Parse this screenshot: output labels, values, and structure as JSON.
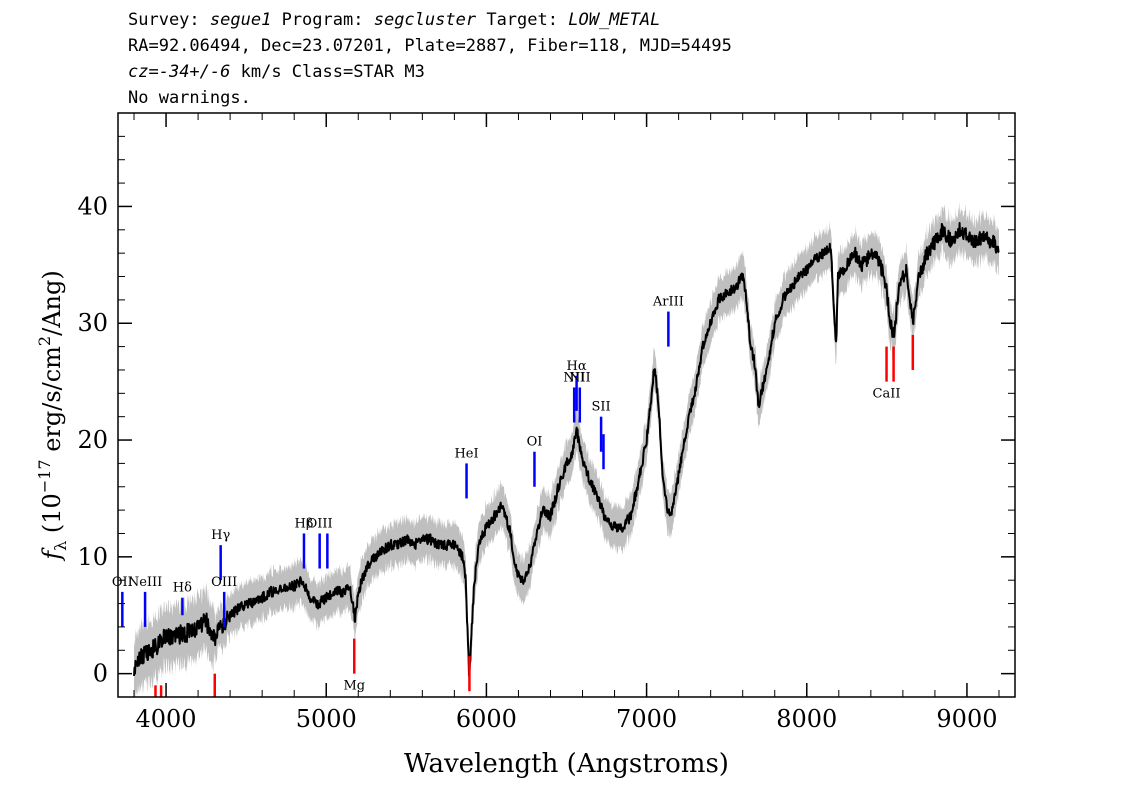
{
  "header": {
    "survey_label": "Survey:",
    "survey": "segue1",
    "program_label": "Program:",
    "program": "segcluster",
    "target_label": "Target:",
    "target": "LOW_METAL",
    "line2": "RA=92.06494, Dec=23.07201, Plate=2887, Fiber=118, MJD=54495",
    "cz_label": "cz=",
    "cz_value": "-34+/-6",
    "cz_rest": " km/s Class=STAR M3",
    "warnings": "No warnings."
  },
  "chart_data": {
    "type": "line",
    "title": "",
    "xlabel": "Wavelength (Angstroms)",
    "ylabel": "f_λ (10^-17 erg/s/cm^2/Ang)",
    "xlim": [
      3700,
      9300
    ],
    "ylim": [
      -2,
      48
    ],
    "xticks": [
      "4000",
      "5000",
      "6000",
      "7000",
      "8000",
      "9000"
    ],
    "yticks": [
      "0",
      "10",
      "20",
      "30",
      "40"
    ],
    "xtick_values": [
      4000,
      5000,
      6000,
      7000,
      8000,
      9000
    ],
    "ytick_values": [
      0,
      10,
      20,
      30,
      40
    ],
    "colors": {
      "spectrum": "#000000",
      "error_band": "#bfbfbf",
      "emission": "#0000ff",
      "absorption": "#ff0000"
    },
    "series": [
      {
        "x": [
          3800,
          3850,
          3900,
          3950,
          4000,
          4050,
          4100,
          4150,
          4200,
          4250,
          4300,
          4350,
          4400,
          4450,
          4500,
          4550,
          4600,
          4650,
          4700,
          4750,
          4800,
          4850,
          4900,
          4950,
          5000,
          5050,
          5100,
          5150,
          5180,
          5200,
          5250,
          5300,
          5350,
          5400,
          5450,
          5500,
          5550,
          5600,
          5650,
          5700,
          5750,
          5800,
          5850,
          5870,
          5893,
          5920,
          5950,
          6000,
          6050,
          6100,
          6150,
          6180,
          6200,
          6230,
          6270,
          6300,
          6350,
          6400,
          6450,
          6500,
          6540,
          6563,
          6600,
          6650,
          6700,
          6750,
          6800,
          6850,
          6900,
          6950,
          7000,
          7050,
          7080,
          7100,
          7130,
          7150,
          7200,
          7250,
          7300,
          7350,
          7400,
          7450,
          7500,
          7550,
          7600,
          7620,
          7650,
          7670,
          7700,
          7750,
          7800,
          7850,
          7900,
          7950,
          8000,
          8050,
          8100,
          8150,
          8183,
          8195,
          8250,
          8300,
          8350,
          8400,
          8450,
          8498,
          8520,
          8542,
          8580,
          8620,
          8662,
          8700,
          8750,
          8800,
          8850,
          8900,
          8950,
          9000,
          9050,
          9100,
          9150,
          9200
        ],
        "y": [
          0.5,
          1.5,
          2,
          2.5,
          3.5,
          3,
          3.5,
          3.5,
          4,
          4.5,
          3,
          4,
          5,
          5.5,
          6,
          6,
          6.5,
          7,
          7,
          7.5,
          7.5,
          8,
          6.5,
          6,
          6.5,
          7,
          7,
          7.5,
          4.5,
          7,
          9,
          10,
          10.5,
          11,
          11,
          11.5,
          11,
          11.5,
          11.5,
          11,
          11,
          11,
          10,
          8,
          -0.5,
          7,
          11,
          12.5,
          13.5,
          14.5,
          12,
          9,
          8.5,
          8,
          9,
          11,
          14,
          13.5,
          16,
          18,
          19,
          21,
          18,
          16.5,
          15,
          13,
          12.5,
          12.5,
          13.5,
          16.5,
          20,
          26.5,
          22,
          17,
          14,
          13.5,
          17,
          21,
          24,
          28,
          30,
          32,
          32.5,
          33,
          34,
          32.5,
          28,
          27,
          23,
          26,
          30,
          32,
          33,
          34,
          34.5,
          35.5,
          36,
          36.5,
          28,
          34,
          35,
          36,
          35,
          36,
          35.5,
          33,
          30,
          29,
          33.5,
          34.5,
          30,
          34,
          36,
          37,
          38,
          37,
          38,
          37.5,
          37,
          37.5,
          37,
          36.5
        ]
      }
    ],
    "error_band": [
      1.5
    ],
    "emission_lines": [
      {
        "label": "OII",
        "x": 3727,
        "y1": 4,
        "y2": 7
      },
      {
        "label": "NeIII",
        "x": 3869,
        "y1": 4,
        "y2": 7
      },
      {
        "label": "Hδ",
        "x": 4102,
        "y1": 5,
        "y2": 6.5
      },
      {
        "label": "Hγ",
        "x": 4341,
        "y1": 8,
        "y2": 11
      },
      {
        "label": "OIII",
        "x": 4363,
        "y1": 4,
        "y2": 7
      },
      {
        "label": "Hβ",
        "x": 4861,
        "y1": 9,
        "y2": 12
      },
      {
        "label": "OIII",
        "x": 4959,
        "y1": 9,
        "y2": 12
      },
      {
        "label": "",
        "x": 5007,
        "y1": 9,
        "y2": 12
      },
      {
        "label": "HeI",
        "x": 5876,
        "y1": 15,
        "y2": 18
      },
      {
        "label": "OI",
        "x": 6300,
        "y1": 16,
        "y2": 19
      },
      {
        "label": "NII",
        "x": 6548,
        "y1": 21.5,
        "y2": 24.5
      },
      {
        "label": "Hα",
        "x": 6563,
        "y1": 22.5,
        "y2": 25.5
      },
      {
        "label": "NII",
        "x": 6583,
        "y1": 21.5,
        "y2": 24.5
      },
      {
        "label": "SII",
        "x": 6716,
        "y1": 19,
        "y2": 22
      },
      {
        "label": "",
        "x": 6731,
        "y1": 17.5,
        "y2": 20.5
      },
      {
        "label": "ArIII",
        "x": 7136,
        "y1": 28,
        "y2": 31
      }
    ],
    "absorption_lines": [
      {
        "label": "",
        "x": 3934,
        "y1": -2,
        "y2": -1
      },
      {
        "label": "",
        "x": 3969,
        "y1": -2,
        "y2": -1
      },
      {
        "label": "",
        "x": 4304,
        "y1": -2,
        "y2": 0
      },
      {
        "label": "Mg",
        "x": 5175,
        "y1": 0,
        "y2": 3
      },
      {
        "label": "",
        "x": 5894,
        "y1": -1.5,
        "y2": 1.5
      },
      {
        "label": "CaII",
        "x": 8498,
        "y1": 25,
        "y2": 28
      },
      {
        "label": "",
        "x": 8542,
        "y1": 25,
        "y2": 28
      },
      {
        "label": "",
        "x": 8662,
        "y1": 26,
        "y2": 29
      }
    ]
  }
}
